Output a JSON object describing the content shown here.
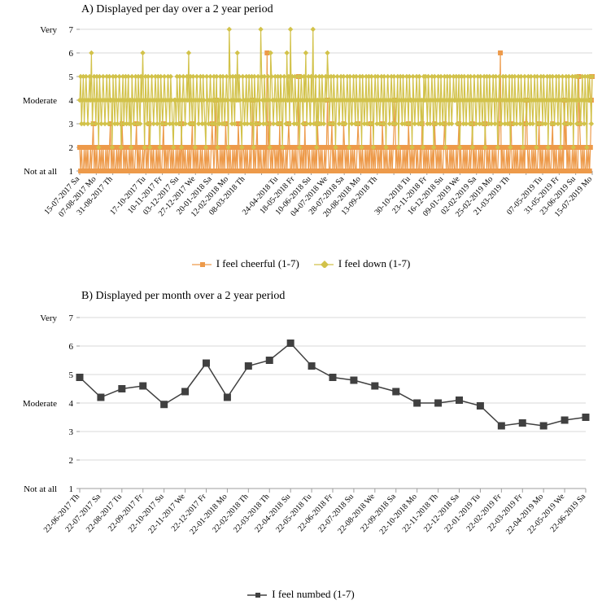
{
  "global": {
    "background_color": "#ffffff",
    "font_family": "Times New Roman",
    "axis_color": "#9e9e9e",
    "grid_color": "#d9d9d9",
    "tick_color": "#9e9e9e",
    "text_color": "#000000"
  },
  "chartA": {
    "title": "A) Displayed per day over a 2 year period",
    "title_fontsize": 14,
    "ylim": [
      1,
      7
    ],
    "ytick_step": 1,
    "y_value_labels": [
      "1",
      "2",
      "3",
      "4",
      "5",
      "6",
      "7"
    ],
    "y_category_labels": {
      "1": "Not at all",
      "4": "Moderate",
      "7": "Very"
    },
    "y_category_fontsize": 11,
    "axis_fontsize": 11,
    "x_fontsize": 10,
    "x_rotation_deg": -48,
    "x_labels": [
      "15-07-2017 Sa",
      "07-08-2017 Mo",
      "31-08-2017 Th",
      "",
      "17-10-2017 Tu",
      "10-11-2017 Fr",
      "03-12-2017 Su",
      "27-12-2017 We",
      "20-01-2018 Sa",
      "12-02-2018 Mo",
      "08-03-2018 Th",
      "",
      "24-04-2018 Tu",
      "18-05-2018 Fr",
      "10-06-2018 Su",
      "04-07-2018 We",
      "28-07-2018 Sa",
      "20-08-2018 Mo",
      "13-09-2018 Th",
      "",
      "30-10-2018 Tu",
      "23-11-2018 Fr",
      "16-12-2018 Su",
      "09-01-2019 We",
      "02-02-2019 Sa",
      "25-02-2019 Mo",
      "21-03-2019 Th",
      "",
      "07-05-2019 Tu",
      "31-05-2019 Fr",
      "23-06-2019 Su",
      "15-07-2019 Mo"
    ],
    "series": [
      {
        "name": "I feel cheerful (1-7)",
        "color": "#ed9a4a",
        "marker": "square",
        "marker_size": 3.0,
        "line_width": 1.2,
        "data": [
          2,
          1,
          2,
          1,
          1,
          2,
          1,
          2,
          1,
          2,
          1,
          1,
          2,
          1,
          2,
          3,
          1,
          2,
          1,
          2,
          1,
          1,
          2,
          1,
          2,
          1,
          2,
          1,
          1,
          2,
          1,
          2,
          1,
          2,
          3,
          1,
          2,
          1,
          2,
          1,
          1,
          2,
          1,
          2,
          1,
          2,
          1,
          3,
          2,
          1,
          2,
          1,
          2,
          1,
          1,
          2,
          1,
          2,
          1,
          2,
          1,
          1,
          2,
          3,
          1,
          2,
          1,
          2,
          1,
          1,
          2,
          1,
          2,
          2,
          1,
          2,
          1,
          3,
          2,
          1,
          2,
          1,
          2,
          1,
          1,
          2,
          1,
          2,
          1,
          2,
          1,
          1,
          2,
          3,
          1,
          2,
          1,
          2,
          1,
          2,
          2,
          1,
          2,
          1,
          2,
          1,
          1,
          2,
          1,
          2,
          1,
          2,
          1,
          3,
          1,
          2,
          1,
          2,
          1,
          1,
          2,
          1,
          2,
          1,
          2,
          3,
          1,
          2,
          1,
          2,
          1,
          2,
          1,
          1,
          2,
          1,
          2,
          1,
          1,
          2,
          1,
          2,
          1,
          2,
          1,
          1,
          2,
          3,
          2,
          1,
          2,
          4,
          1,
          2,
          1,
          1,
          2,
          1,
          2,
          1,
          2,
          1,
          3,
          2,
          1,
          2,
          1,
          2,
          1,
          1,
          2,
          1,
          2,
          1,
          2,
          1,
          3,
          2,
          1,
          2,
          1,
          2,
          2,
          1,
          2,
          1,
          2,
          1,
          1,
          2,
          1,
          2,
          4,
          1,
          2,
          1,
          2,
          3,
          1,
          2,
          1,
          2,
          1,
          1,
          2,
          1,
          2,
          1,
          6,
          1,
          3,
          2,
          1,
          2,
          1,
          2,
          2,
          1,
          2,
          1,
          2,
          1,
          3,
          1,
          2,
          1,
          2,
          1,
          1,
          2,
          1,
          2,
          3,
          2,
          1,
          1,
          2,
          1,
          2,
          1,
          2,
          1,
          1,
          5,
          2,
          1,
          2,
          1,
          2,
          1,
          3,
          1,
          2,
          2,
          1,
          2,
          1,
          1,
          2,
          1,
          2,
          1,
          2,
          1,
          3,
          2,
          1,
          2,
          1,
          2,
          1,
          1,
          2,
          1,
          2,
          4,
          2,
          1,
          1,
          2,
          3,
          1,
          2,
          1,
          2,
          1,
          1,
          2,
          1,
          2,
          1,
          2,
          1,
          3,
          2,
          1,
          2,
          1,
          2,
          1,
          1,
          2,
          1,
          2,
          1,
          2,
          1,
          1,
          2,
          3,
          2,
          1,
          2,
          1,
          2,
          1,
          1,
          2,
          1,
          2,
          1,
          2,
          1,
          3,
          1,
          2,
          1,
          2,
          1,
          2,
          2,
          1,
          2,
          1,
          2,
          1,
          3,
          2,
          1,
          2,
          1,
          2,
          1,
          1,
          2,
          1,
          2,
          1,
          2,
          3,
          4,
          1,
          2,
          1,
          2,
          1,
          2,
          1,
          1,
          2,
          1,
          2,
          1,
          2,
          1,
          3,
          2,
          1,
          2,
          1,
          2,
          1,
          2,
          2,
          1,
          2,
          1,
          1,
          2,
          1,
          3,
          2,
          1,
          2,
          1,
          2,
          1,
          2,
          1,
          1,
          2,
          1,
          2,
          1,
          3,
          2,
          1,
          2,
          1,
          2,
          1,
          2,
          1,
          1,
          2,
          3,
          2,
          1,
          2,
          1,
          1,
          2,
          1,
          2,
          1,
          2,
          1,
          1,
          2,
          1,
          2,
          3,
          1,
          2,
          1,
          1,
          2,
          1,
          2,
          1,
          2,
          1,
          1,
          2,
          1,
          2,
          3,
          1,
          2,
          1,
          2,
          1,
          1,
          2,
          1,
          2,
          1,
          2,
          1,
          1,
          3,
          2,
          1,
          2,
          1,
          2,
          1,
          1,
          2,
          1,
          2,
          1,
          2,
          1,
          1,
          2,
          3,
          6,
          1,
          2,
          1,
          2,
          1,
          1,
          2,
          1,
          2,
          1,
          2,
          3,
          1,
          1,
          2,
          1,
          2,
          1,
          2,
          1,
          1,
          2,
          1,
          2,
          1,
          2,
          1,
          3,
          4,
          2,
          1,
          2,
          1,
          1,
          2,
          1,
          2,
          1,
          2,
          1,
          1,
          2,
          3,
          1,
          2,
          1,
          2,
          1,
          1,
          2,
          1,
          2,
          1,
          2,
          1,
          1,
          2,
          3,
          1,
          2,
          1,
          2,
          1,
          1,
          2,
          1,
          2,
          1,
          2,
          1,
          4,
          2,
          3,
          1,
          2,
          1,
          2,
          1,
          1,
          2,
          1,
          2,
          1,
          2,
          1,
          1,
          5,
          3,
          2,
          1,
          2,
          1,
          2,
          1,
          1,
          2,
          1,
          2,
          1,
          2,
          4,
          5
        ]
      },
      {
        "name": "I feel down (1-7)",
        "color": "#d2c24a",
        "marker": "diamond",
        "marker_size": 3.2,
        "line_width": 1.2,
        "data": [
          4,
          5,
          3,
          4,
          5,
          3,
          4,
          5,
          4,
          3,
          4,
          5,
          4,
          6,
          3,
          4,
          5,
          4,
          3,
          5,
          4,
          2,
          5,
          4,
          3,
          4,
          5,
          4,
          3,
          4,
          5,
          4,
          3,
          5,
          4,
          4,
          2,
          5,
          4,
          3,
          5,
          4,
          3,
          4,
          5,
          4,
          2,
          4,
          5,
          3,
          4,
          5,
          3,
          4,
          5,
          3,
          4,
          2,
          5,
          4,
          3,
          4,
          5,
          4,
          3,
          5,
          4,
          3,
          5,
          4,
          6,
          4,
          2,
          5,
          4,
          3,
          5,
          4,
          2,
          4,
          5,
          4,
          3,
          4,
          5,
          4,
          3,
          5,
          4,
          2,
          5,
          4,
          3,
          4,
          5,
          4,
          3,
          4,
          5,
          4,
          3,
          5,
          4,
          3,
          2,
          4,
          4,
          3,
          5,
          4,
          3,
          5,
          4,
          2,
          4,
          5,
          4,
          3,
          4,
          5,
          4,
          6,
          3,
          5,
          4,
          3,
          5,
          4,
          2,
          4,
          5,
          4,
          3,
          4,
          5,
          4,
          3,
          5,
          4,
          3,
          2,
          5,
          4,
          3,
          4,
          5,
          4,
          3,
          4,
          5,
          3,
          4,
          5,
          2,
          4,
          3,
          5,
          4,
          3,
          5,
          4,
          3,
          4,
          5,
          4,
          2,
          7,
          5,
          4,
          3,
          5,
          4,
          3,
          5,
          4,
          6,
          4,
          5,
          4,
          3,
          2,
          5,
          4,
          3,
          4,
          5,
          3,
          4,
          5,
          4,
          3,
          5,
          4,
          2,
          5,
          4,
          3,
          4,
          5,
          4,
          3,
          7,
          5,
          4,
          3,
          5,
          4,
          3,
          4,
          5,
          4,
          2,
          6,
          5,
          4,
          3,
          4,
          5,
          4,
          3,
          5,
          4,
          3,
          5,
          4,
          2,
          4,
          5,
          4,
          3,
          6,
          4,
          5,
          3,
          7,
          4,
          5,
          4,
          3,
          5,
          4,
          3,
          4,
          5,
          2,
          4,
          5,
          4,
          3,
          5,
          4,
          6,
          3,
          4,
          5,
          4,
          3,
          5,
          4,
          7,
          3,
          4,
          5,
          2,
          4,
          3,
          5,
          4,
          3,
          5,
          4,
          3,
          4,
          5,
          4,
          6,
          5,
          3,
          4,
          5,
          4,
          3,
          5,
          4,
          2,
          4,
          5,
          4,
          3,
          4,
          5,
          4,
          3,
          5,
          4,
          3,
          4,
          5,
          4,
          2,
          5,
          4,
          3,
          4,
          5,
          4,
          3,
          5,
          4,
          3,
          4,
          5,
          4,
          2,
          5,
          4,
          3,
          4,
          5,
          3,
          4,
          5,
          4,
          3,
          5,
          4,
          2,
          4,
          5,
          4,
          3,
          5,
          4,
          3,
          4,
          5,
          4,
          3,
          5,
          4,
          2,
          4,
          5,
          4,
          3,
          4,
          5,
          4,
          3,
          5,
          4,
          3,
          4,
          5,
          2,
          4,
          5,
          4,
          3,
          5,
          4,
          3,
          4,
          5,
          4,
          3,
          5,
          4,
          4,
          2,
          5,
          4,
          3,
          4,
          5,
          4,
          3,
          5,
          4,
          3,
          4,
          2,
          5,
          4,
          5,
          4,
          3,
          5,
          4,
          3,
          4,
          5,
          4,
          2,
          5,
          4,
          3,
          4,
          5,
          4,
          3,
          5,
          4,
          3,
          4,
          5,
          2,
          4,
          5,
          4,
          3,
          5,
          4,
          3,
          4,
          5,
          4,
          4,
          5,
          3,
          4,
          5,
          2,
          4,
          5,
          4,
          3,
          5,
          4,
          3,
          4,
          5,
          4,
          3,
          5,
          4,
          2,
          4,
          5,
          4,
          3,
          4,
          5,
          4,
          3,
          5,
          4,
          3,
          4,
          5,
          2,
          4,
          5,
          4,
          3,
          5,
          4,
          3,
          4,
          5,
          4,
          3,
          5,
          4,
          2,
          4,
          5,
          4,
          3,
          4,
          5,
          4,
          3,
          5,
          4,
          3,
          4,
          5,
          2,
          4,
          5,
          4,
          3,
          5,
          4,
          3,
          4,
          5,
          4,
          3,
          5,
          4,
          2,
          4,
          5,
          4,
          3,
          4,
          5,
          4,
          3,
          5,
          4,
          3,
          4,
          5,
          4,
          2,
          5,
          4,
          3,
          4,
          5,
          4,
          3,
          5,
          4,
          3,
          4,
          5,
          2,
          4,
          5,
          4,
          3,
          5,
          4,
          3,
          4,
          5,
          4,
          3,
          5,
          4,
          2,
          4,
          5,
          4,
          3,
          4,
          5,
          4,
          3,
          5,
          4,
          3,
          4,
          5,
          2,
          4,
          5,
          4,
          3,
          5,
          4,
          4,
          3,
          4,
          5,
          4,
          3,
          5,
          4,
          2,
          5,
          4,
          5,
          4,
          3,
          5
        ]
      }
    ],
    "legend": {
      "entries": [
        {
          "label": "I feel cheerful (1-7)",
          "color": "#ed9a4a",
          "marker": "square"
        },
        {
          "label": "I feel down (1-7)",
          "color": "#d2c24a",
          "marker": "diamond"
        }
      ],
      "fontsize": 13
    }
  },
  "chartB": {
    "title": "B) Displayed per month over a 2 year period",
    "title_fontsize": 14,
    "ylim": [
      1,
      7
    ],
    "ytick_step": 1,
    "y_value_labels": [
      "1",
      "2",
      "3",
      "4",
      "5",
      "6",
      "7"
    ],
    "y_category_labels": {
      "1": "Not at all",
      "4": "Moderate",
      "7": "Very"
    },
    "y_category_fontsize": 11,
    "axis_fontsize": 11,
    "x_fontsize": 10,
    "x_rotation_deg": -48,
    "x_labels": [
      "22-06-2017 Th",
      "22-07-2017 Sa",
      "22-08-2017 Tu",
      "22-09-2017 Fr",
      "22-10-2017 Su",
      "22-11-2017 We",
      "22-12-2017 Fr",
      "22-01-2018 Mo",
      "22-02-2018 Th",
      "22-03-2018 Th",
      "22-04-2018 Su",
      "22-05-2018 Tu",
      "22-06-2018 Fr",
      "22-07-2018 Su",
      "22-08-2018 We",
      "22-09-2018 Sa",
      "22-10-2018 Mo",
      "22-11-2018 Th",
      "22-12-2018 Sa",
      "22-01-2019 Tu",
      "22-02-2019 Fr",
      "22-03-2019 Fr",
      "22-04-2019 Mo",
      "22-05-2019 We",
      "22-06-2019 Sa"
    ],
    "series": [
      {
        "name": "I feel numbed (1-7)",
        "color": "#404040",
        "marker": "square",
        "marker_size": 4.5,
        "line_width": 1.5,
        "data": [
          4.9,
          4.2,
          4.5,
          4.6,
          3.95,
          4.4,
          5.4,
          4.2,
          5.3,
          5.5,
          6.1,
          5.3,
          4.9,
          4.8,
          4.6,
          4.4,
          4.0,
          4.0,
          4.1,
          3.9,
          3.2,
          3.3,
          3.2,
          3.4,
          3.5
        ]
      }
    ],
    "legend": {
      "entries": [
        {
          "label": "I feel numbed (1-7)",
          "color": "#404040",
          "marker": "square"
        }
      ],
      "fontsize": 13
    }
  }
}
